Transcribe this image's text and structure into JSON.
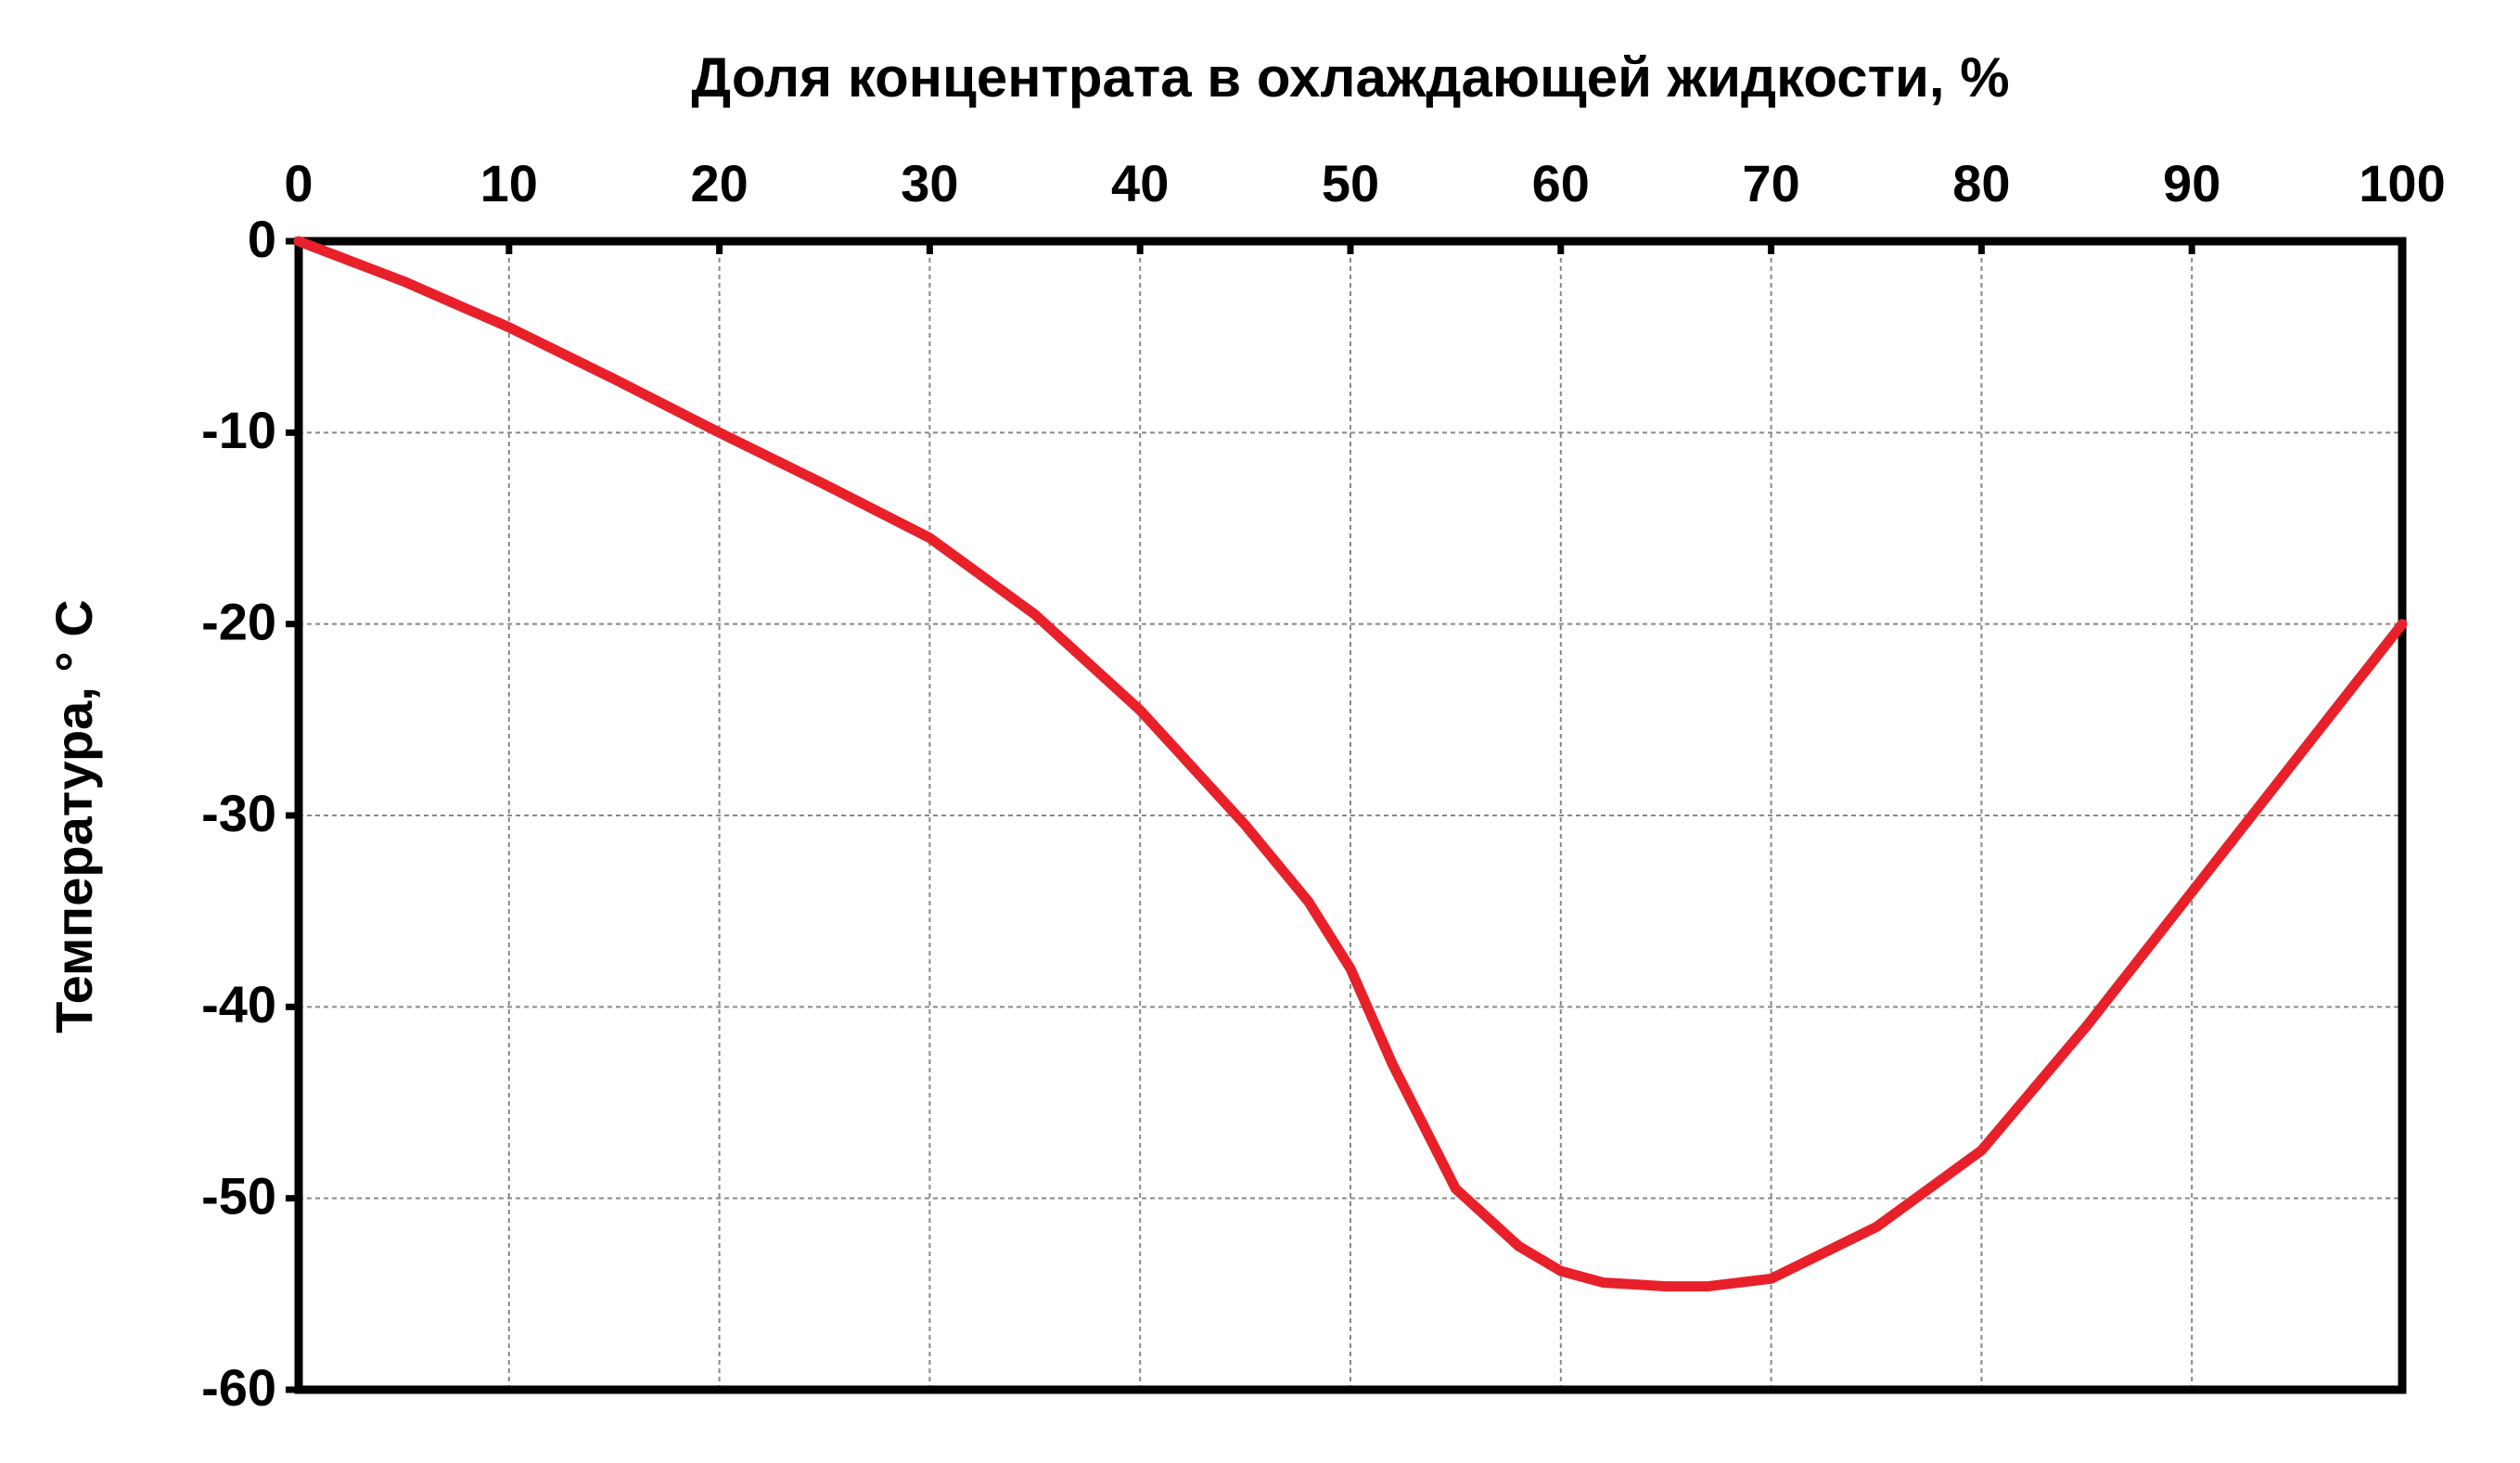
{
  "chart_data": {
    "type": "line",
    "title": "Доля концентрата в охлаждающей жидкости, %",
    "y_label": "Температура, ° С",
    "x": [
      0,
      5,
      10,
      15,
      20,
      25,
      30,
      35,
      40,
      45,
      48,
      50,
      52,
      55,
      58,
      60,
      62,
      65,
      67,
      70,
      75,
      80,
      85,
      90,
      95,
      100
    ],
    "series": [
      {
        "color": "#e8202a",
        "values": [
          0,
          -2.1,
          -4.5,
          -7.2,
          -10,
          -12.7,
          -15.5,
          -19.5,
          -24.5,
          -30.5,
          -34.5,
          -38,
          -43,
          -49.5,
          -52.5,
          -53.8,
          -54.4,
          -54.6,
          -54.6,
          -54.2,
          -51.5,
          -47.5,
          -41,
          -34,
          -27,
          -20
        ]
      }
    ],
    "xlim": [
      0,
      100
    ],
    "xticks": [
      0,
      10,
      20,
      30,
      40,
      50,
      60,
      70,
      80,
      90,
      100
    ],
    "ylim": [
      -60,
      0
    ],
    "yticks": [
      0,
      -10,
      -20,
      -30,
      -40,
      -50,
      -60
    ],
    "grid": true
  }
}
